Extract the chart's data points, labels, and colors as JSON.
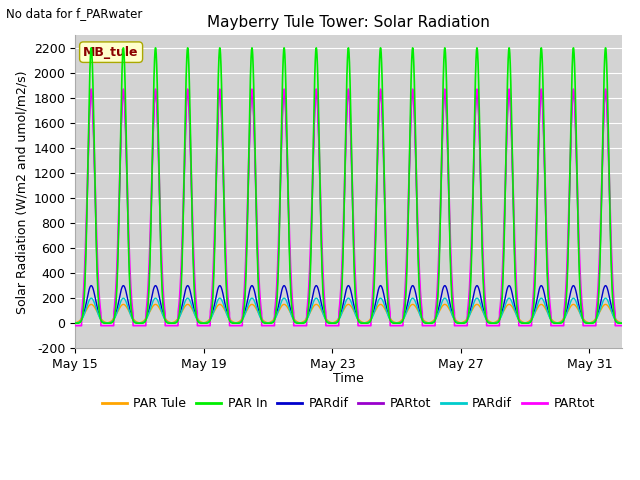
{
  "title": "Mayberry Tule Tower: Solar Radiation",
  "ylabel": "Solar Radiation (W/m2 and umol/m2/s)",
  "xlabel": "Time",
  "no_data_text": "No data for f_PARwater",
  "ylim": [
    -200,
    2300
  ],
  "n_days": 17,
  "background_color": "#d3d3d3",
  "outer_background": "#ffffff",
  "peak_green": 2200,
  "peak_magenta": 1870,
  "peak_orange": 150,
  "peak_cyan": 200,
  "peak_blue": 300,
  "peak_purple": 1850,
  "series_colors": {
    "PAR Tule": "#ffa500",
    "PAR In": "#00ee00",
    "PARdif_blue": "#0000cc",
    "PARtot_purple": "#9900cc",
    "PARdif_cyan": "#00cccc",
    "PARtot_magenta": "#ff00ff"
  },
  "legend_entries": [
    {
      "label": "PAR Tule",
      "color": "#ffa500"
    },
    {
      "label": "PAR In",
      "color": "#00ee00"
    },
    {
      "label": "PARdif",
      "color": "#0000cc"
    },
    {
      "label": "PARtot",
      "color": "#9900cc"
    },
    {
      "label": "PARdif",
      "color": "#00cccc"
    },
    {
      "label": "PARtot",
      "color": "#ff00ff"
    }
  ],
  "x_tick_positions": [
    0,
    4,
    8,
    12,
    16
  ],
  "x_tick_labels": [
    "May 15",
    "May 19",
    "May 23",
    "May 27",
    "May 31"
  ],
  "y_ticks": [
    -200,
    0,
    200,
    400,
    600,
    800,
    1000,
    1200,
    1400,
    1600,
    1800,
    2000,
    2200
  ]
}
